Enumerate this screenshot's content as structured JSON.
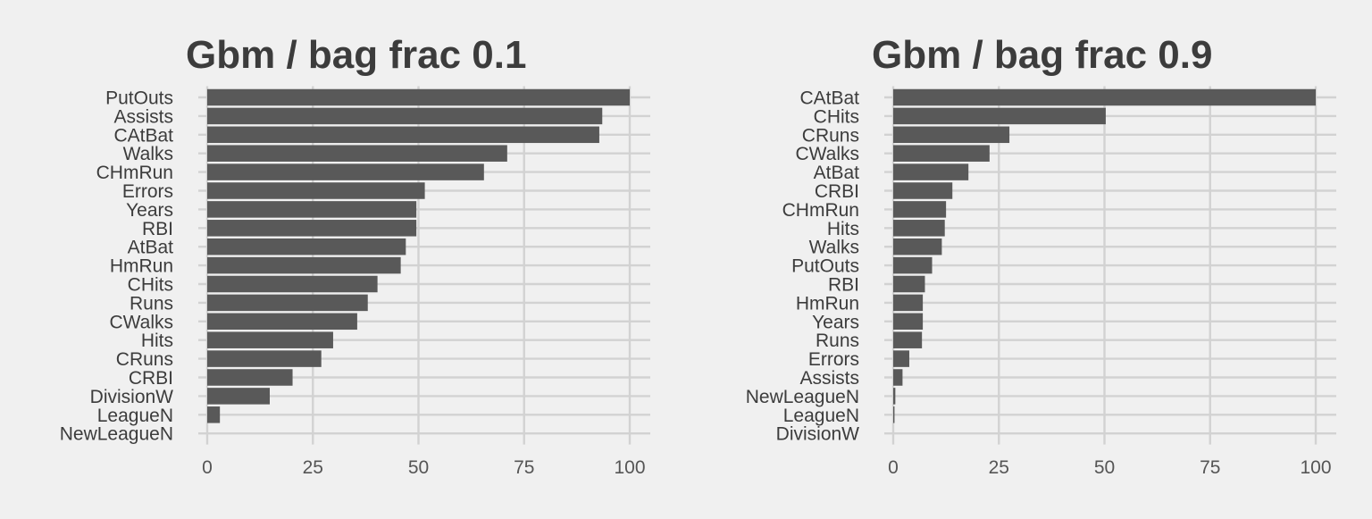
{
  "chart_data": [
    {
      "type": "bar",
      "orientation": "horizontal",
      "title": "Gbm / bag frac 0.1",
      "xlabel": "",
      "ylabel": "",
      "xlim": [
        0,
        100
      ],
      "xticks": [
        0,
        25,
        50,
        75,
        100
      ],
      "grid": true,
      "bar_color": "#595959",
      "categories": [
        "PutOuts",
        "Assists",
        "CAtBat",
        "Walks",
        "CHmRun",
        "Errors",
        "Years",
        "RBI",
        "AtBat",
        "HmRun",
        "CHits",
        "Runs",
        "CWalks",
        "Hits",
        "CRuns",
        "CRBI",
        "DivisionW",
        "LeagueN",
        "NewLeagueN"
      ],
      "values": [
        100,
        93.5,
        92.8,
        71,
        65.5,
        51.5,
        49.5,
        49.5,
        47,
        45.8,
        40.3,
        38,
        35.5,
        29.8,
        27,
        20.2,
        14.8,
        3,
        0
      ]
    },
    {
      "type": "bar",
      "orientation": "horizontal",
      "title": "Gbm / bag frac 0.9",
      "xlabel": "",
      "ylabel": "",
      "xlim": [
        0,
        100
      ],
      "xticks": [
        0,
        25,
        50,
        75,
        100
      ],
      "grid": true,
      "bar_color": "#595959",
      "categories": [
        "CAtBat",
        "CHits",
        "CRuns",
        "CWalks",
        "AtBat",
        "CRBI",
        "CHmRun",
        "Hits",
        "Walks",
        "PutOuts",
        "RBI",
        "HmRun",
        "Years",
        "Runs",
        "Errors",
        "Assists",
        "NewLeagueN",
        "LeagueN",
        "DivisionW"
      ],
      "values": [
        100,
        50.3,
        27.5,
        22.8,
        17.8,
        14,
        12.5,
        12.2,
        11.5,
        9.2,
        7.5,
        7,
        7,
        6.8,
        3.8,
        2.2,
        0.5,
        0.3,
        0
      ]
    }
  ]
}
